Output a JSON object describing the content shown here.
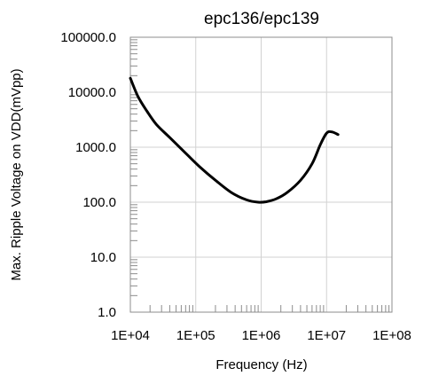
{
  "chart_data": {
    "type": "line",
    "title": "epc136/epc139",
    "xlabel": "Frequency (Hz)",
    "ylabel": "Max. Ripple Voltage on VDD(mVpp)",
    "x_scale": "log",
    "y_scale": "log",
    "xlim": [
      10000,
      100000000
    ],
    "ylim": [
      1,
      100000
    ],
    "x_ticks": [
      {
        "value": 10000,
        "label": "1E+04"
      },
      {
        "value": 100000,
        "label": "1E+05"
      },
      {
        "value": 1000000,
        "label": "1E+06"
      },
      {
        "value": 10000000,
        "label": "1E+07"
      },
      {
        "value": 100000000,
        "label": "1E+08"
      }
    ],
    "y_ticks": [
      {
        "value": 1,
        "label": "1.0"
      },
      {
        "value": 10,
        "label": "10.0"
      },
      {
        "value": 100,
        "label": "100.0"
      },
      {
        "value": 1000,
        "label": "1000.0"
      },
      {
        "value": 10000,
        "label": "10000.0"
      },
      {
        "value": 100000,
        "label": "100000.0"
      }
    ],
    "grid": true,
    "line_color": "#000000",
    "series": [
      {
        "x": [
          10000,
          13000,
          18000,
          25000,
          40000,
          70000,
          120000,
          200000,
          350000,
          600000,
          900000,
          1200000,
          1700000,
          2500000,
          4000000,
          6000000,
          8000000,
          10000000,
          12000000,
          15000000
        ],
        "y": [
          18000,
          8500,
          4500,
          2600,
          1500,
          780,
          420,
          250,
          150,
          110,
          100,
          102,
          115,
          150,
          250,
          500,
          1100,
          1800,
          1900,
          1700
        ]
      }
    ]
  }
}
